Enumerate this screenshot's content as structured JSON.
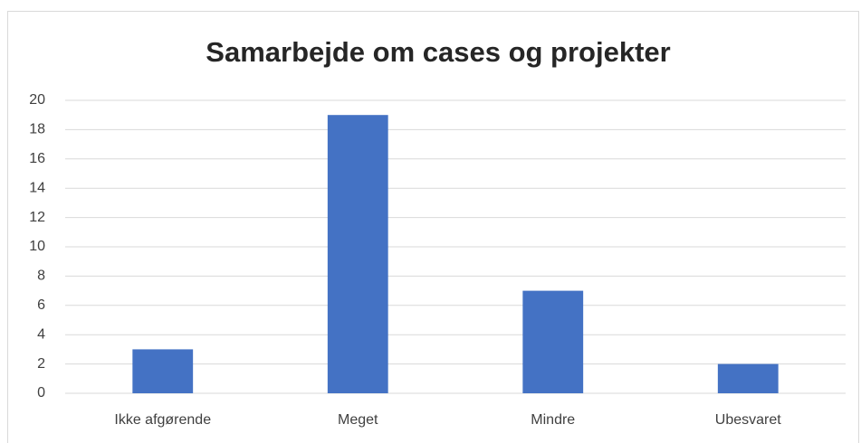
{
  "chart_data": {
    "type": "bar",
    "title": "Samarbejde om cases og projekter",
    "categories": [
      "Ikke afgørende",
      "Meget",
      "Mindre",
      "Ubesvaret"
    ],
    "values": [
      3,
      19,
      7,
      2
    ],
    "color": "#4472c4",
    "ylim": [
      0,
      20
    ],
    "yticks": [
      0,
      2,
      4,
      6,
      8,
      10,
      12,
      14,
      16,
      18,
      20
    ],
    "grid": true
  }
}
